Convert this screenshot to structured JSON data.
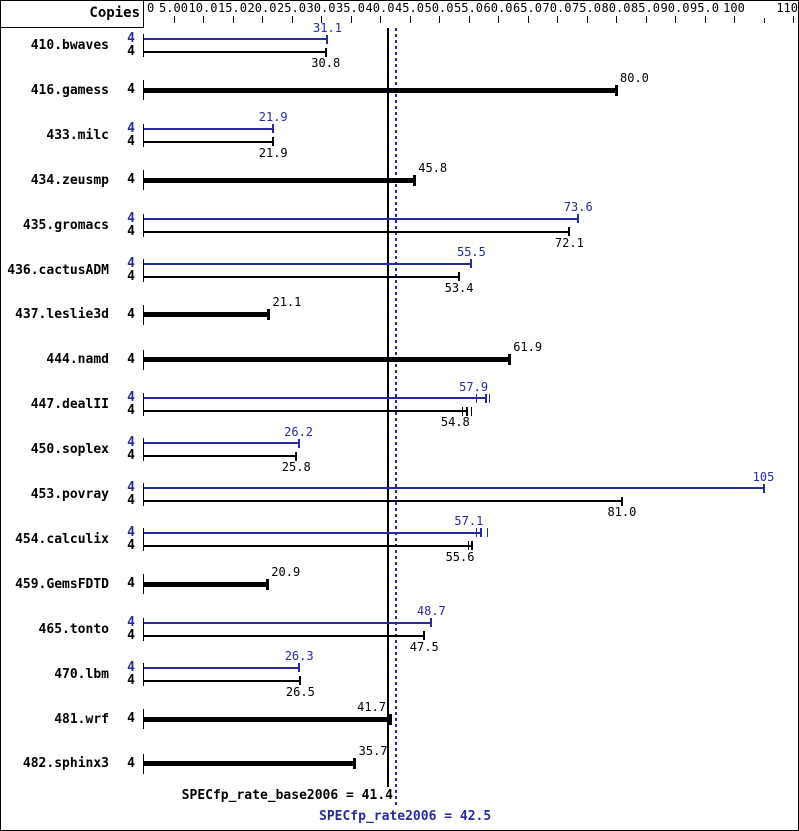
{
  "header": {
    "copies_label": "Copies"
  },
  "axis": {
    "major_ticks": [
      {
        "value": 0,
        "label": "0"
      },
      {
        "value": 5,
        "label": "5.00"
      },
      {
        "value": 10,
        "label": "10.0"
      },
      {
        "value": 15,
        "label": "15.0"
      },
      {
        "value": 20,
        "label": "20.0"
      },
      {
        "value": 25,
        "label": "25.0"
      },
      {
        "value": 30,
        "label": "30.0"
      },
      {
        "value": 35,
        "label": "35.0"
      },
      {
        "value": 40,
        "label": "40.0"
      },
      {
        "value": 45,
        "label": "45.0"
      },
      {
        "value": 50,
        "label": "50.0"
      },
      {
        "value": 55,
        "label": "55.0"
      },
      {
        "value": 60,
        "label": "60.0"
      },
      {
        "value": 65,
        "label": "65.0"
      },
      {
        "value": 70,
        "label": "70.0"
      },
      {
        "value": 75,
        "label": "75.0"
      },
      {
        "value": 80,
        "label": "80.0"
      },
      {
        "value": 85,
        "label": "85.0"
      },
      {
        "value": 90,
        "label": "90.0"
      },
      {
        "value": 95,
        "label": "95.0"
      },
      {
        "value": 100,
        "label": "100"
      },
      {
        "value": 110,
        "label": "110"
      }
    ],
    "minor_ticks": [
      105
    ],
    "min": 0,
    "max": 110
  },
  "colors": {
    "peak_blue": "#2929a3",
    "base_black": "#000000",
    "background": "#ffffff"
  },
  "summary": {
    "base": {
      "label": "SPECfp_rate_base2006 = 41.4",
      "value": 41.4
    },
    "peak": {
      "label": "SPECfp_rate2006 = 42.5",
      "value": 42.5
    }
  },
  "chart_data": {
    "type": "bar",
    "orientation": "horizontal",
    "xlim": [
      0,
      110
    ],
    "copies_column_header": "Copies",
    "benchmarks": [
      {
        "name": "410.bwaves",
        "copies": 4,
        "peak": 31.1,
        "peak_label": "31.1",
        "base": 30.8,
        "base_label": "30.8"
      },
      {
        "name": "416.gamess",
        "copies": 4,
        "base": 80.0,
        "base_label": "80.0"
      },
      {
        "name": "433.milc",
        "copies": 4,
        "peak": 21.9,
        "peak_label": "21.9",
        "base": 21.9,
        "base_label": "21.9"
      },
      {
        "name": "434.zeusmp",
        "copies": 4,
        "base": 45.8,
        "base_label": "45.8"
      },
      {
        "name": "435.gromacs",
        "copies": 4,
        "peak": 73.6,
        "peak_label": "73.6",
        "base": 72.1,
        "base_label": "72.1"
      },
      {
        "name": "436.cactusADM",
        "copies": 4,
        "peak": 55.5,
        "peak_label": "55.5",
        "base": 53.4,
        "base_label": "53.4"
      },
      {
        "name": "437.leslie3d",
        "copies": 4,
        "base": 21.1,
        "base_label": "21.1"
      },
      {
        "name": "444.namd",
        "copies": 4,
        "base": 61.9,
        "base_label": "61.9"
      },
      {
        "name": "447.dealII",
        "copies": 4,
        "peak": 57.9,
        "peak_label": "57.9",
        "base": 54.8,
        "base_label": "54.8",
        "peak_run_ticks": [
          56.3,
          58.5
        ],
        "base_run_ticks": [
          54.0,
          55.5
        ],
        "label_dx": -12
      },
      {
        "name": "450.soplex",
        "copies": 4,
        "peak": 26.2,
        "peak_label": "26.2",
        "base": 25.8,
        "base_label": "25.8"
      },
      {
        "name": "453.povray",
        "copies": 4,
        "peak": 105,
        "peak_label": "105",
        "base": 81.0,
        "base_label": "81.0"
      },
      {
        "name": "454.calculix",
        "copies": 4,
        "peak": 57.1,
        "peak_label": "57.1",
        "base": 55.6,
        "base_label": "55.6",
        "peak_run_ticks": [
          56.3,
          58.2
        ],
        "base_run_ticks": [
          55.0
        ],
        "label_dx": -12
      },
      {
        "name": "459.GemsFDTD",
        "copies": 4,
        "base": 20.9,
        "base_label": "20.9"
      },
      {
        "name": "465.tonto",
        "copies": 4,
        "peak": 48.7,
        "peak_label": "48.7",
        "base": 47.5,
        "base_label": "47.5"
      },
      {
        "name": "470.lbm",
        "copies": 4,
        "peak": 26.3,
        "peak_label": "26.3",
        "base": 26.5,
        "base_label": "26.5"
      },
      {
        "name": "481.wrf",
        "copies": 4,
        "base": 41.7,
        "base_label": "41.7",
        "single_label_anchor": "right"
      },
      {
        "name": "482.sphinx3",
        "copies": 4,
        "base": 35.7,
        "base_label": "35.7"
      }
    ]
  }
}
